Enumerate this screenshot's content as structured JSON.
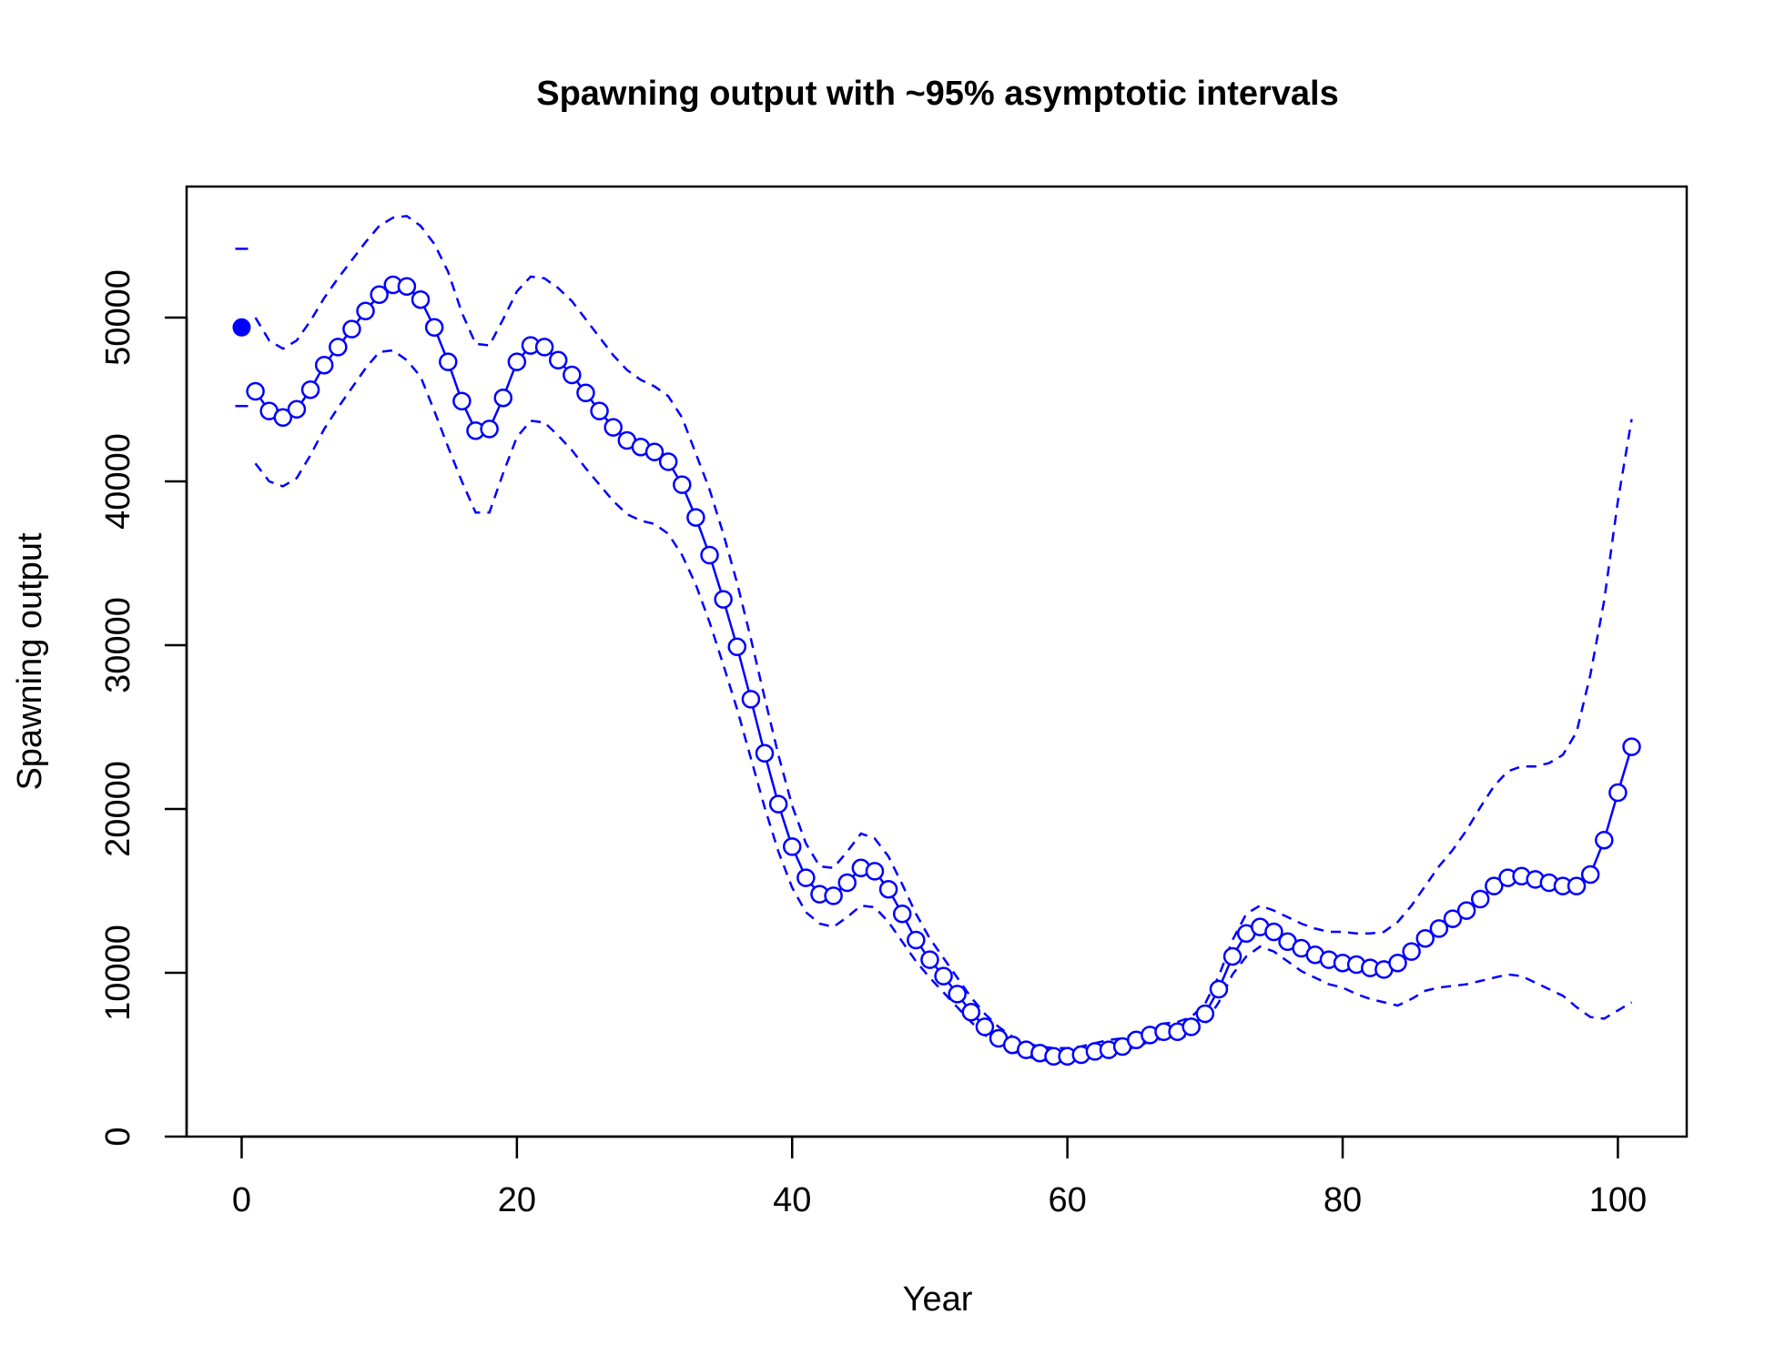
{
  "chart_data": {
    "type": "line",
    "title": "Spawning output with ~95% asymptotic intervals",
    "xlabel": "Year",
    "ylabel": "Spawning output",
    "xlim": [
      -4,
      105
    ],
    "ylim": [
      0,
      58000
    ],
    "x_ticks": [
      0,
      20,
      40,
      60,
      80,
      100
    ],
    "y_ticks": [
      0,
      10000,
      20000,
      30000,
      40000,
      50000
    ],
    "x_tick_labels": [
      "0",
      "20",
      "40",
      "60",
      "80",
      "100"
    ],
    "y_tick_labels": [
      "0",
      "10000",
      "20000",
      "30000",
      "40000",
      "50000"
    ],
    "grid": false,
    "legend": "none",
    "color": "#0000ff",
    "virgin": {
      "x": 0,
      "value": 49400,
      "lower": 44600,
      "upper": 54200
    },
    "series": [
      {
        "x": [
          1,
          2,
          3,
          4,
          5,
          6,
          7,
          8,
          9,
          10,
          11,
          12,
          13,
          14,
          15,
          16,
          17,
          18,
          19,
          20,
          21,
          22,
          23,
          24,
          25,
          26,
          27,
          28,
          29,
          30,
          31,
          32,
          33,
          34,
          35,
          36,
          37,
          38,
          39,
          40,
          41,
          42,
          43,
          44,
          45,
          46,
          47,
          48,
          49,
          50,
          51,
          52,
          53,
          54,
          55,
          56,
          57,
          58,
          59,
          60,
          61,
          62,
          63,
          64,
          65,
          66,
          67,
          68,
          69,
          70,
          71,
          72,
          73,
          74,
          75,
          76,
          77,
          78,
          79,
          80,
          81,
          82,
          83,
          84,
          85,
          86,
          87,
          88,
          89,
          90,
          91,
          92,
          93,
          94,
          95,
          96,
          97,
          98,
          99,
          100,
          101
        ],
        "values": [
          45500,
          44300,
          43900,
          44400,
          45600,
          47100,
          48200,
          49300,
          50400,
          51400,
          52000,
          51900,
          51100,
          49400,
          47300,
          44900,
          43100,
          43200,
          45100,
          47300,
          48300,
          48200,
          47400,
          46500,
          45400,
          44300,
          43300,
          42500,
          42100,
          41800,
          41200,
          39800,
          37800,
          35500,
          32800,
          29900,
          26700,
          23400,
          20300,
          17700,
          15800,
          14800,
          14700,
          15500,
          16400,
          16200,
          15100,
          13600,
          12000,
          10800,
          9800,
          8700,
          7600,
          6700,
          6000,
          5600,
          5300,
          5100,
          4900,
          4900,
          5000,
          5200,
          5300,
          5500,
          5900,
          6200,
          6400,
          6400,
          6700,
          7500,
          9000,
          11000,
          12400,
          12800,
          12500,
          11900,
          11500,
          11100,
          10800,
          10600,
          10500,
          10300,
          10200,
          10600,
          11300,
          12100,
          12700,
          13300,
          13800,
          14500,
          15300,
          15800,
          15900,
          15700,
          15500,
          15300,
          15300,
          16000,
          18100,
          21000,
          23800
        ],
        "lower": [
          41100,
          40000,
          39700,
          40200,
          41600,
          43200,
          44500,
          45700,
          46900,
          47900,
          48000,
          47400,
          46400,
          44300,
          42100,
          40000,
          38100,
          38100,
          40500,
          42700,
          43700,
          43600,
          42800,
          41900,
          40800,
          39800,
          38800,
          38000,
          37600,
          37400,
          36800,
          35500,
          33700,
          31400,
          28800,
          26100,
          23100,
          20100,
          17400,
          15200,
          13700,
          13000,
          12800,
          13400,
          14100,
          14000,
          13100,
          11900,
          10700,
          9700,
          8800,
          7900,
          7000,
          6200,
          5600,
          5200,
          4900,
          4700,
          4600,
          4600,
          4700,
          4900,
          5000,
          5200,
          5500,
          5800,
          6000,
          6000,
          6200,
          6900,
          8200,
          9900,
          11000,
          11600,
          11300,
          10700,
          10100,
          9700,
          9300,
          9100,
          8700,
          8400,
          8200,
          8000,
          8400,
          8900,
          9100,
          9200,
          9300,
          9500,
          9700,
          9900,
          9800,
          9400,
          9000,
          8600,
          7900,
          7300,
          7200,
          7700,
          8200
        ],
        "upper": [
          50000,
          48600,
          48100,
          48600,
          49800,
          51200,
          52400,
          53500,
          54600,
          55600,
          56100,
          56200,
          55600,
          54500,
          52800,
          50300,
          48400,
          48300,
          49900,
          51600,
          52500,
          52400,
          51800,
          51000,
          49900,
          48800,
          47700,
          46800,
          46200,
          45800,
          45200,
          43900,
          41700,
          39500,
          36800,
          33800,
          30400,
          26800,
          23300,
          20200,
          17900,
          16500,
          16400,
          17400,
          18500,
          18200,
          17100,
          15400,
          13600,
          12100,
          10900,
          9700,
          8500,
          7500,
          6700,
          6100,
          5700,
          5500,
          5400,
          5400,
          5500,
          5700,
          5900,
          6000,
          6300,
          6600,
          6900,
          7000,
          7300,
          8100,
          9800,
          12000,
          13600,
          14100,
          13800,
          13400,
          13000,
          12700,
          12500,
          12500,
          12400,
          12400,
          12500,
          13100,
          14100,
          15300,
          16500,
          17500,
          18700,
          20100,
          21400,
          22300,
          22600,
          22600,
          22800,
          23300,
          24700,
          28200,
          32700,
          38800,
          43800
        ]
      }
    ]
  }
}
